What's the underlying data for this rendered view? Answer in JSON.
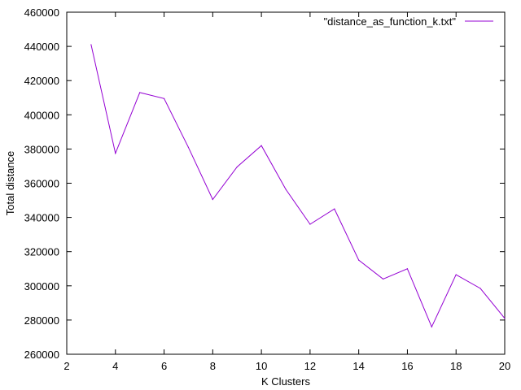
{
  "chart_data": {
    "type": "line",
    "title": "",
    "xlabel": "K Clusters",
    "ylabel": "Total distance",
    "xlim": [
      2,
      20
    ],
    "ylim": [
      260000,
      460000
    ],
    "xticks": [
      2,
      4,
      6,
      8,
      10,
      12,
      14,
      16,
      18,
      20
    ],
    "yticks": [
      260000,
      280000,
      300000,
      320000,
      340000,
      360000,
      380000,
      400000,
      420000,
      440000,
      460000
    ],
    "grid": false,
    "legend_position": "top-right",
    "series": [
      {
        "name": "\"distance_as_function_k.txt\"",
        "color": "#9400d3",
        "x": [
          3,
          4,
          5,
          6,
          7,
          8,
          9,
          10,
          11,
          12,
          13,
          14,
          15,
          16,
          17,
          18,
          19,
          20
        ],
        "y": [
          441000,
          377500,
          413000,
          409500,
          381000,
          350500,
          369500,
          382000,
          356500,
          336000,
          345000,
          315000,
          304000,
          310000,
          276000,
          306500,
          298500,
          281000
        ]
      }
    ]
  }
}
